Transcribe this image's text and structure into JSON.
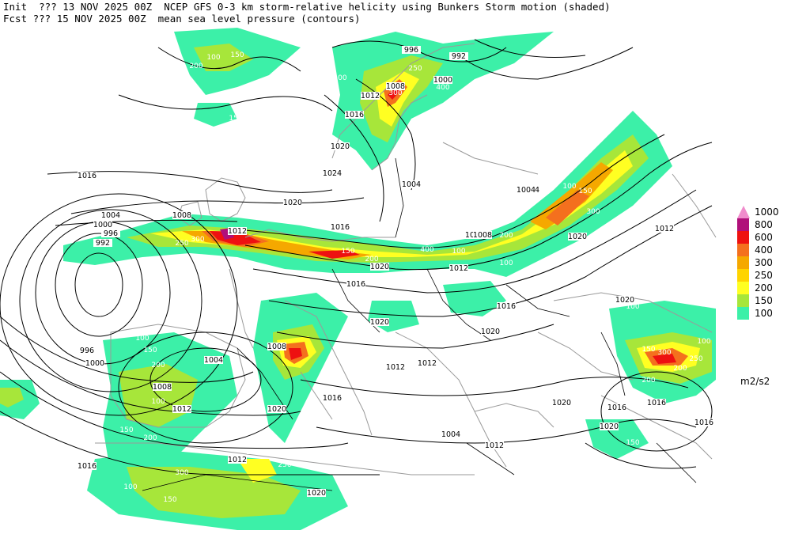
{
  "header": {
    "line1": "Init  ??? 13 NOV 2025 00Z  NCEP GFS 0-3 km storm-relative helicity using Bunkers Storm motion (shaded)",
    "line2": "Fcst ??? 15 NOV 2025 00Z  mean sea level pressure (contours)"
  },
  "legend": {
    "units": "m2/s2",
    "levels": [
      {
        "label": "1000",
        "color": "#f08ccc"
      },
      {
        "label": "800",
        "color": "#b0107a"
      },
      {
        "label": "600",
        "color": "#ee1111"
      },
      {
        "label": "400",
        "color": "#f4701e"
      },
      {
        "label": "300",
        "color": "#f5a800"
      },
      {
        "label": "250",
        "color": "#ffd400"
      },
      {
        "label": "200",
        "color": "#ffff22"
      },
      {
        "label": "150",
        "color": "#a7e63a"
      },
      {
        "label": "100",
        "color": "#3cf0a8"
      }
    ]
  },
  "colors": {
    "coastline": "#9a9a9a",
    "contour": "#000000",
    "boundary": "#000000"
  },
  "contour_labels": [
    "996",
    "992",
    "1000",
    "1004",
    "1008",
    "1012",
    "1016",
    "1020",
    "1024",
    "1016",
    "1020",
    "1004",
    "1000",
    "996",
    "992",
    "1008",
    "1012",
    "1016",
    "1020",
    "1024",
    "1004",
    "1008",
    "1012",
    "1016",
    "1020",
    "1012",
    "1016",
    "1020",
    "1020",
    "1016",
    "1004",
    "1012",
    "1016",
    "1020",
    "1012",
    "1008",
    "1016",
    "1012",
    "1020",
    "1008",
    "1004",
    "1016",
    "1020",
    "996",
    "1000",
    "1004",
    "1012",
    "1020",
    "1016",
    "1012",
    "1020"
  ],
  "shading_labels": [
    "100",
    "150",
    "200",
    "250",
    "300",
    "400",
    "100",
    "150",
    "200",
    "250",
    "300",
    "100",
    "150",
    "200",
    "250",
    "300",
    "400",
    "100",
    "150",
    "200",
    "250",
    "300",
    "100",
    "150",
    "200",
    "100",
    "150",
    "200",
    "100",
    "150",
    "200",
    "250",
    "300",
    "100",
    "150",
    "200",
    "250",
    "300",
    "100",
    "150",
    "200",
    "100",
    "150"
  ]
}
